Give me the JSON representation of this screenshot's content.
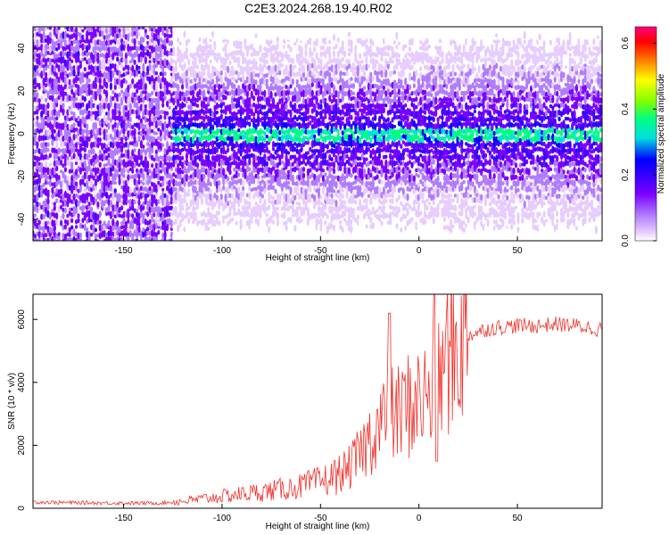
{
  "figure_title": "C2E3.2024.268.19.40.R02",
  "colors": {
    "snr_line": "#f0302a",
    "spectrogram_background": "#ffffff",
    "colormap": [
      "#ffffff",
      "#e6ccff",
      "#b07cff",
      "#7a00ff",
      "#3a00ff",
      "#0000ff",
      "#00e0e0",
      "#00ff80",
      "#80ff00",
      "#ffff00",
      "#ff8000",
      "#ff0000",
      "#ff0080"
    ]
  },
  "chart_data": [
    {
      "type": "heatmap",
      "title": "",
      "xlabel": "Height of straight line (km)",
      "ylabel": "Frequency (Hz)",
      "xlim": [
        -196,
        93
      ],
      "ylim": [
        -50,
        50
      ],
      "x_ticks": [
        "-150",
        "-100",
        "-50",
        "0",
        "50"
      ],
      "y_ticks": [
        "-40",
        "-20",
        "0",
        "20",
        "40"
      ],
      "grid": false,
      "colorbar": {
        "label": "Normalized spectral amplitude",
        "range": [
          0.0,
          0.65
        ],
        "ticks": [
          "0.0",
          "0.2",
          "0.4",
          "0.6"
        ]
      },
      "description_of_signal": {
        "noise_region_x": [
          -196,
          -125
        ],
        "signal_band_center_hz": 0,
        "signal_onset_x": -125
      }
    },
    {
      "type": "line",
      "title": "",
      "xlabel": "Height of straight line (km)",
      "ylabel": "SNR (10 * v/v)",
      "xlim": [
        -196,
        93
      ],
      "ylim": [
        0,
        6800
      ],
      "x_ticks": [
        "-150",
        "-100",
        "-50",
        "0",
        "50"
      ],
      "y_ticks": [
        "0",
        "2000",
        "4000",
        "6000"
      ],
      "grid": false,
      "series": [
        {
          "x": [
            -196,
            -180,
            -160,
            -140,
            -130,
            -120,
            -110,
            -100,
            -90,
            -80,
            -70,
            -60,
            -50,
            -45,
            -40,
            -35,
            -30,
            -25,
            -20,
            -15,
            -10,
            -5,
            0,
            5,
            8,
            10,
            12,
            15,
            20,
            25,
            30,
            35,
            40,
            50,
            60,
            70,
            80,
            90,
            93
          ],
          "y": [
            200,
            180,
            170,
            160,
            170,
            220,
            300,
            380,
            450,
            520,
            600,
            700,
            850,
            950,
            1100,
            1300,
            1700,
            2200,
            2700,
            2900,
            3000,
            3300,
            3400,
            3600,
            3500,
            3900,
            4400,
            4900,
            5200,
            5500,
            5600,
            5700,
            5750,
            5800,
            5800,
            5850,
            5800,
            5700,
            5700
          ]
        }
      ],
      "annotations": [
        {
          "x": -15,
          "y": 6200,
          "text": ""
        },
        {
          "x": 8,
          "y": 6800,
          "text": ""
        },
        {
          "x": 8,
          "y": 1500,
          "text": ""
        }
      ]
    }
  ]
}
